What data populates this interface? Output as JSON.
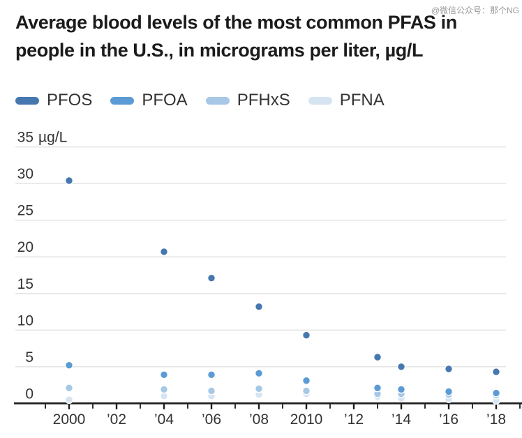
{
  "header": {
    "title_line1": "Average blood levels of the most common PFAS in",
    "title_line2": "people in the U.S., in micrograms per liter, µg/L",
    "watermark": "@微信公众号：那个NG"
  },
  "legend": {
    "items": [
      {
        "label": "PFOS",
        "color": "#4678af"
      },
      {
        "label": "PFOA",
        "color": "#5b9bd5"
      },
      {
        "label": "PFHxS",
        "color": "#a6c8e6"
      },
      {
        "label": "PFNA",
        "color": "#d6e4f2"
      }
    ]
  },
  "chart_data": {
    "type": "scatter",
    "title": "Average blood levels of the most common PFAS in people in the U.S., in micrograms per liter, µg/L",
    "x": [
      2000,
      2004,
      2006,
      2008,
      2010,
      2013,
      2014,
      2016,
      2018
    ],
    "series": [
      {
        "name": "PFOS",
        "color": "#4678af",
        "values": [
          30.4,
          20.7,
          17.1,
          13.2,
          9.3,
          6.3,
          5.0,
          4.7,
          4.3
        ]
      },
      {
        "name": "PFOA",
        "color": "#5b9bd5",
        "values": [
          5.2,
          3.9,
          3.9,
          4.1,
          3.1,
          2.1,
          1.9,
          1.6,
          1.4
        ]
      },
      {
        "name": "PFHxS",
        "color": "#a6c8e6",
        "values": [
          2.1,
          1.9,
          1.7,
          2.0,
          1.7,
          1.3,
          1.3,
          1.2,
          1.1
        ]
      },
      {
        "name": "PFNA",
        "color": "#d6e4f2",
        "values": [
          0.5,
          1.0,
          1.0,
          1.2,
          1.3,
          0.9,
          0.7,
          0.6,
          0.4
        ]
      }
    ],
    "ylim": [
      0,
      35
    ],
    "y_ticks": [
      35,
      30,
      25,
      20,
      15,
      10,
      5,
      0
    ],
    "y_unit": "µg/L",
    "x_axis_range": [
      1999,
      2019
    ],
    "x_tick_labels": {
      "2000": "2000",
      "2002": "’02",
      "2004": "’04",
      "2006": "’06",
      "2008": "’08",
      "2010": "2010",
      "2012": "’12",
      "2014": "’14",
      "2016": "’16",
      "2018": "’18"
    },
    "grid": "horizontal",
    "legend_position": "top"
  },
  "colors": {
    "grid": "#e3e3e3",
    "axis": "#1a1a1a",
    "text": "#333333",
    "title": "#1b1b1b",
    "background": "#ffffff"
  }
}
